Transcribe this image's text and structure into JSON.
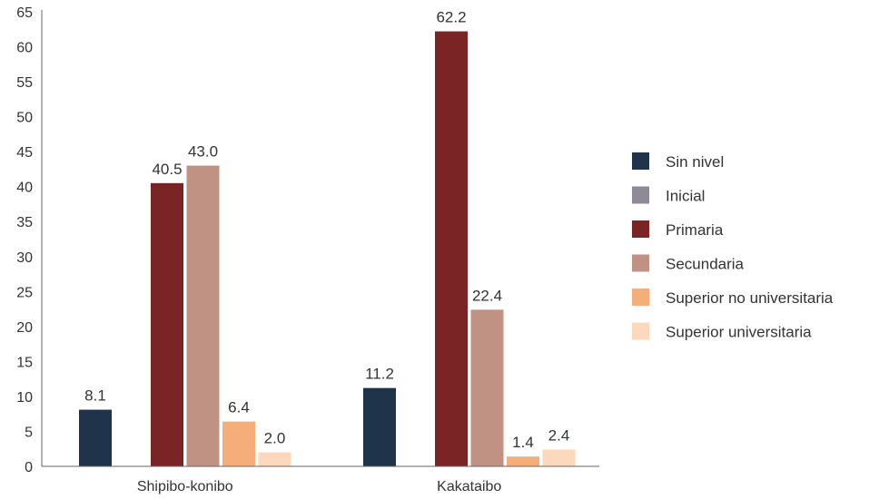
{
  "chart_data": {
    "type": "bar",
    "title": "",
    "xlabel": "",
    "ylabel": "",
    "ylim": [
      0,
      65
    ],
    "yticks": [
      0,
      5,
      10,
      15,
      20,
      25,
      30,
      35,
      40,
      45,
      50,
      55,
      60,
      65
    ],
    "grid": false,
    "legend_position": "right",
    "categories": [
      "Shipibo-konibo",
      "Kakataibo"
    ],
    "series": [
      {
        "name": "Sin nivel",
        "color": "#1f344a",
        "values": [
          8.1,
          11.2
        ],
        "labels": [
          "8.1",
          "11.2"
        ]
      },
      {
        "name": "Inicial",
        "color": "#8e8b97",
        "values": [
          null,
          null
        ],
        "labels": [
          "",
          ""
        ]
      },
      {
        "name": "Primaria",
        "color": "#7b2426",
        "values": [
          40.5,
          62.2
        ],
        "labels": [
          "40.5",
          "62.2"
        ]
      },
      {
        "name": "Secundaria",
        "color": "#bf9284",
        "values": [
          43.0,
          22.4
        ],
        "labels": [
          "43.0",
          "22.4"
        ]
      },
      {
        "name": "Superior no universitaria",
        "color": "#f5ad79",
        "values": [
          6.4,
          1.4
        ],
        "labels": [
          "6.4",
          "1.4"
        ]
      },
      {
        "name": "Superior universitaria",
        "color": "#fcd8bd",
        "values": [
          2.0,
          2.4
        ],
        "labels": [
          "2.0",
          "2.4"
        ]
      }
    ]
  }
}
